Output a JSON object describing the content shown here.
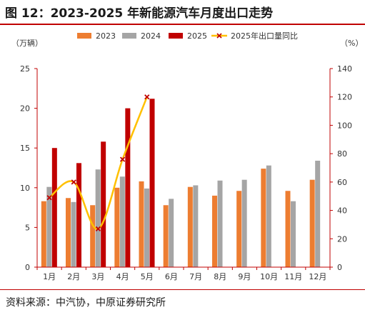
{
  "page": {
    "title": "图 12：2023-2025 年新能源汽车月度出口走势",
    "source": "资料来源：中汽协，中原证券研究所"
  },
  "colors": {
    "s2023": "#ed7d31",
    "s2024": "#a5a5a5",
    "s2025": "#c00000",
    "yoy": "#ffc000",
    "yoy_marker": "#c00000",
    "accent": "#c00000"
  },
  "chart_data": {
    "type": "bar",
    "categories": [
      "1月",
      "2月",
      "3月",
      "4月",
      "5月",
      "6月",
      "7月",
      "8月",
      "9月",
      "10月",
      "11月",
      "12月"
    ],
    "series": [
      {
        "name": "2023",
        "type": "bar",
        "axis": "left",
        "values": [
          8.3,
          8.7,
          7.8,
          10.0,
          10.8,
          7.8,
          10.1,
          9.0,
          9.6,
          12.4,
          9.6,
          11.0
        ]
      },
      {
        "name": "2024",
        "type": "bar",
        "axis": "left",
        "values": [
          10.1,
          8.2,
          12.3,
          11.4,
          9.9,
          8.6,
          10.3,
          10.9,
          11.0,
          12.8,
          8.3,
          13.4
        ]
      },
      {
        "name": "2025",
        "type": "bar",
        "axis": "left",
        "values": [
          15.0,
          13.1,
          15.8,
          20.0,
          21.2,
          null,
          null,
          null,
          null,
          null,
          null,
          null
        ]
      },
      {
        "name": "2025年出口量同比",
        "type": "line",
        "axis": "right",
        "values": [
          49,
          60,
          27,
          76,
          120,
          null,
          null,
          null,
          null,
          null,
          null,
          null
        ]
      }
    ],
    "ylabel_left": "（万辆）",
    "ylabel_right": "（%）",
    "ylim_left": [
      0,
      25
    ],
    "yticks_left": [
      "0",
      "5",
      "10",
      "15",
      "20",
      "25"
    ],
    "ylim_right": [
      0,
      140
    ],
    "yticks_right": [
      "0",
      "20",
      "40",
      "60",
      "80",
      "100",
      "120",
      "140"
    ],
    "legend": [
      "2023",
      "2024",
      "2025",
      "2025年出口量同比"
    ],
    "legend_position": "top",
    "grid": false
  }
}
